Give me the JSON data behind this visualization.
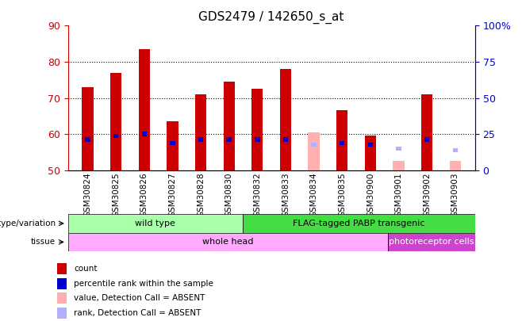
{
  "title": "GDS2479 / 142650_s_at",
  "samples": [
    "GSM30824",
    "GSM30825",
    "GSM30826",
    "GSM30827",
    "GSM30828",
    "GSM30830",
    "GSM30832",
    "GSM30833",
    "GSM30834",
    "GSM30835",
    "GSM30900",
    "GSM30901",
    "GSM30902",
    "GSM30903"
  ],
  "count_values": [
    73,
    77,
    83.5,
    63.5,
    71,
    74.5,
    72.5,
    78,
    0,
    66.5,
    59.5,
    0,
    71,
    0
  ],
  "percentile_values": [
    58.5,
    59.5,
    60,
    57.5,
    58.5,
    58.5,
    58.5,
    58.5,
    0,
    57.5,
    57,
    0,
    58.5,
    0
  ],
  "absent_count_values": [
    0,
    0,
    0,
    0,
    0,
    0,
    0,
    0,
    60.5,
    0,
    0,
    52.5,
    0,
    52.5
  ],
  "absent_rank_values": [
    0,
    0,
    0,
    0,
    0,
    0,
    0,
    0,
    57,
    0,
    0,
    56,
    0,
    55.5
  ],
  "ylim_left": [
    50,
    90
  ],
  "ylim_right": [
    0,
    100
  ],
  "yticks_left": [
    50,
    60,
    70,
    80,
    90
  ],
  "yticks_right": [
    0,
    25,
    50,
    75,
    100
  ],
  "bar_width": 0.4,
  "count_color": "#cc0000",
  "percentile_color": "#0000cc",
  "absent_count_color": "#ffb0b0",
  "absent_rank_color": "#b0b0ff",
  "genotype_wild_type": {
    "label": "wild type",
    "start": 0,
    "end": 6,
    "color": "#aaffaa"
  },
  "genotype_flag": {
    "label": "FLAG-tagged PABP transgenic",
    "start": 6,
    "end": 14,
    "color": "#44dd44"
  },
  "tissue_whole": {
    "label": "whole head",
    "start": 0,
    "end": 11,
    "color": "#ffaaff"
  },
  "tissue_photo": {
    "label": "photoreceptor cells",
    "start": 11,
    "end": 14,
    "color": "#cc44cc"
  },
  "legend_items": [
    {
      "label": "count",
      "color": "#cc0000"
    },
    {
      "label": "percentile rank within the sample",
      "color": "#0000cc"
    },
    {
      "label": "value, Detection Call = ABSENT",
      "color": "#ffb0b0"
    },
    {
      "label": "rank, Detection Call = ABSENT",
      "color": "#b0b0ff"
    }
  ],
  "left_axis_color": "#cc0000",
  "right_axis_color": "#0000cc",
  "background_color": "#ffffff"
}
